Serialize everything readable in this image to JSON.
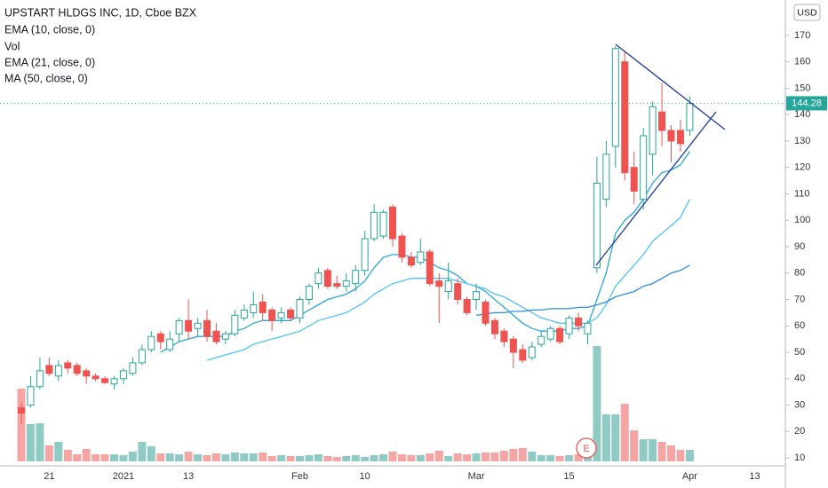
{
  "chart_data": {
    "type": "candlestick",
    "title": "UPSTART HLDGS INC, 1D, Cboe BZX",
    "currency": "USD",
    "categories": [
      null,
      null,
      null,
      "21",
      null,
      null,
      null,
      null,
      null,
      null,
      null,
      "2021",
      null,
      null,
      null,
      null,
      null,
      null,
      "13",
      null,
      null,
      null,
      null,
      null,
      null,
      null,
      null,
      null,
      null,
      null,
      "Feb",
      null,
      null,
      null,
      null,
      null,
      null,
      "10",
      null,
      null,
      null,
      null,
      null,
      null,
      null,
      null,
      null,
      null,
      null,
      "Mar",
      null,
      null,
      null,
      null,
      null,
      null,
      null,
      null,
      null,
      "15",
      null,
      null,
      null,
      null,
      null,
      null,
      null,
      null,
      null,
      null,
      null,
      null,
      "Apr",
      null,
      null,
      null,
      null,
      null,
      null,
      "13"
    ],
    "open": [
      29,
      30,
      37,
      45,
      41,
      46,
      45,
      43,
      41,
      40,
      38,
      40,
      42,
      46,
      51,
      57,
      51,
      57,
      62,
      59,
      62,
      58,
      55,
      57,
      63,
      65,
      69,
      66,
      63,
      66,
      63,
      70,
      76,
      81,
      76,
      75,
      76,
      81,
      93,
      94,
      105,
      94,
      86,
      84,
      88,
      77,
      73,
      76,
      70,
      70,
      69,
      62,
      58,
      55,
      51,
      48,
      53,
      55,
      59,
      57,
      63,
      57,
      82,
      108,
      128,
      160,
      120,
      108,
      125,
      141,
      134,
      134,
      134,
      null,
      null,
      null,
      null,
      null,
      null,
      null
    ],
    "high": [
      31,
      41,
      48,
      48,
      47,
      47,
      46,
      44,
      42,
      41,
      41,
      44,
      48,
      53,
      58,
      58,
      58,
      63,
      70,
      63,
      66,
      61,
      58,
      66,
      68,
      73,
      72,
      67,
      67,
      67,
      71,
      76,
      82,
      82,
      79,
      80,
      83,
      96,
      106,
      104,
      106,
      95,
      88,
      93,
      89,
      80,
      84,
      78,
      71,
      76,
      70,
      63,
      59,
      56,
      53,
      54,
      58,
      60,
      60,
      64,
      65,
      62,
      124,
      130,
      166,
      164,
      126,
      135,
      145,
      152,
      136,
      138,
      147,
      null,
      null,
      null,
      null,
      null,
      null,
      null
    ],
    "low": [
      23,
      29,
      36,
      41,
      39,
      42,
      41,
      38,
      39,
      38,
      36,
      38,
      41,
      45,
      50,
      51,
      50,
      54,
      55,
      56,
      54,
      53,
      53,
      56,
      62,
      63,
      62,
      58,
      61,
      62,
      61,
      68,
      74,
      74,
      74,
      73,
      73,
      79,
      92,
      93,
      90,
      84,
      82,
      83,
      75,
      61,
      70,
      68,
      64,
      66,
      60,
      55,
      52,
      44,
      46,
      47,
      52,
      54,
      53,
      55,
      58,
      53,
      80,
      105,
      120,
      115,
      106,
      104,
      117,
      128,
      122,
      126,
      132,
      null,
      null,
      null,
      null,
      null,
      null,
      null
    ],
    "close": [
      27,
      37,
      43,
      42,
      45,
      44,
      42,
      41,
      40,
      38.5,
      40,
      43,
      46,
      51,
      56,
      54,
      55,
      62,
      58,
      61,
      56,
      54,
      57,
      64,
      66,
      68,
      65,
      62,
      65,
      63,
      70,
      75,
      80,
      75,
      75,
      77,
      81,
      93,
      103,
      103,
      93,
      86,
      83,
      88,
      76,
      75,
      77,
      70,
      65,
      73,
      61,
      57,
      54,
      50,
      47,
      52,
      56,
      59,
      54,
      63,
      60,
      61,
      114,
      125,
      165,
      118,
      111,
      132,
      143,
      134,
      130,
      129,
      144.28,
      null,
      null,
      null,
      null,
      null,
      null,
      null
    ],
    "up_color": "#26a69a",
    "down_color": "#ef5350",
    "volume": {
      "name": "Vol",
      "up_color": "#8fcbc4",
      "down_color": "#f5a6a4",
      "values": [
        16.4,
        8.4,
        8.6,
        3.6,
        4.4,
        2.6,
        1.6,
        2.8,
        1.6,
        1.6,
        1.6,
        1.4,
        2.2,
        4.4,
        3.4,
        1.8,
        1.8,
        1.6,
        2.2,
        1.6,
        1.4,
        1.8,
        1.6,
        2.0,
        1.8,
        1.8,
        2.0,
        1.2,
        1.4,
        1.2,
        1.2,
        1.4,
        1.6,
        1.2,
        1.0,
        1.2,
        1.4,
        1.0,
        1.4,
        1.6,
        2.2,
        1.6,
        1.4,
        1.4,
        1.8,
        2.4,
        1.2,
        1.8,
        1.6,
        1.8,
        2.0,
        2.0,
        2.4,
        2.8,
        3.0,
        2.2,
        1.4,
        1.4,
        1.2,
        1.4,
        1.6,
        1.6,
        26.0,
        10.6,
        10.6,
        13.0,
        7.0,
        5.0,
        5.0,
        4.4,
        3.6,
        2.6,
        2.6,
        null,
        null,
        null,
        null,
        null,
        null,
        null
      ]
    },
    "indicators": [
      {
        "name": "EMA (10, close, 0)",
        "color": "#29a6d9",
        "values": [
          null,
          null,
          null,
          null,
          null,
          null,
          null,
          null,
          null,
          null,
          null,
          null,
          null,
          null,
          null,
          50,
          52,
          54,
          55,
          56,
          56,
          56,
          56,
          58,
          59,
          61,
          62,
          62,
          62,
          62,
          64,
          66,
          68,
          70,
          71,
          72,
          74,
          77,
          82,
          86,
          87,
          87,
          86,
          86,
          84,
          82,
          81,
          79,
          76,
          75,
          73,
          70,
          67,
          64,
          61,
          59,
          58,
          58,
          58,
          59,
          59,
          60,
          70,
          80,
          95,
          100,
          103,
          108,
          114,
          118,
          119,
          121,
          126,
          null,
          null,
          null,
          null,
          null,
          null,
          null
        ]
      },
      {
        "name": "EMA (21, close, 0)",
        "color": "#4fc3f7",
        "values": [
          null,
          null,
          null,
          null,
          null,
          null,
          null,
          null,
          null,
          null,
          null,
          null,
          null,
          null,
          null,
          null,
          null,
          null,
          null,
          null,
          47,
          48,
          49,
          50,
          51,
          53,
          54,
          55,
          56,
          57,
          58,
          60,
          62,
          63,
          64,
          65,
          67,
          69,
          72,
          74,
          76,
          77,
          78,
          78,
          78,
          78,
          78,
          77,
          76,
          75,
          74,
          72,
          71,
          69,
          67,
          65,
          63,
          62,
          61,
          61,
          61,
          61,
          63,
          68,
          75,
          79,
          83,
          87,
          92,
          95,
          98,
          101,
          108,
          null,
          null,
          null,
          null,
          null,
          null,
          null
        ]
      },
      {
        "name": "MA (50, close, 0)",
        "color": "#2f8ddb",
        "values": [
          null,
          null,
          null,
          null,
          null,
          null,
          null,
          null,
          null,
          null,
          null,
          null,
          null,
          null,
          null,
          null,
          null,
          null,
          null,
          null,
          null,
          null,
          null,
          null,
          null,
          null,
          null,
          null,
          null,
          null,
          null,
          null,
          null,
          null,
          null,
          null,
          null,
          null,
          null,
          null,
          null,
          null,
          null,
          null,
          null,
          null,
          null,
          null,
          null,
          64,
          64.5,
          65,
          65,
          65.5,
          65.5,
          66,
          66,
          66.5,
          66.5,
          66.5,
          67,
          67,
          68,
          69,
          71,
          72,
          73,
          75,
          76,
          78,
          80,
          81,
          83,
          null,
          null,
          null,
          null,
          null,
          null,
          null
        ]
      }
    ],
    "last_price": 144.28,
    "earnings_marker": "E",
    "ylim": [
      7,
      183.4
    ],
    "yticks": [
      10,
      20,
      30,
      40,
      50,
      60,
      70,
      80,
      90,
      100,
      110,
      120,
      130,
      140,
      150,
      160,
      170
    ]
  }
}
